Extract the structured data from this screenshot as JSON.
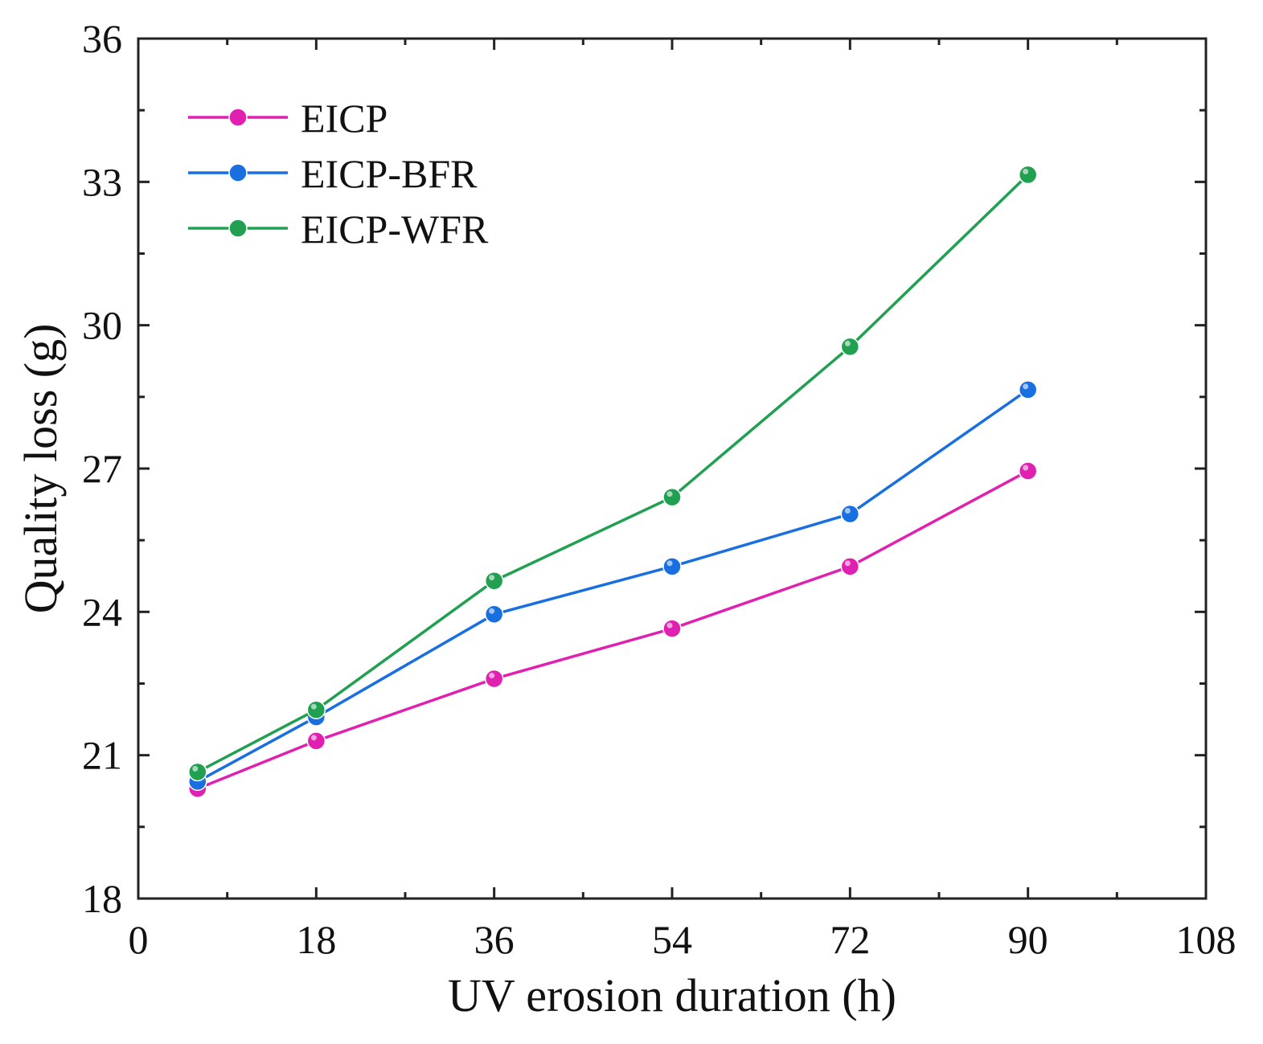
{
  "chart_data": {
    "type": "line",
    "title": "",
    "xlabel": "UV erosion duration (h)",
    "ylabel": "Quality loss (g)",
    "xlim": [
      0,
      108
    ],
    "ylim": [
      18,
      36
    ],
    "xticks": [
      0,
      18,
      36,
      54,
      72,
      90,
      108
    ],
    "yticks": [
      18,
      21,
      24,
      27,
      30,
      33,
      36
    ],
    "grid": false,
    "legend_position": "top-left",
    "x": [
      6,
      18,
      36,
      54,
      72,
      90
    ],
    "series": [
      {
        "name": "EICP",
        "color": "#e020b0",
        "values": [
          20.3,
          21.3,
          22.6,
          23.65,
          24.95,
          26.95
        ]
      },
      {
        "name": "EICP-BFR",
        "color": "#1a6fe0",
        "values": [
          20.45,
          21.8,
          23.95,
          24.95,
          26.05,
          28.65
        ]
      },
      {
        "name": "EICP-WFR",
        "color": "#20a050",
        "values": [
          20.65,
          21.95,
          24.65,
          26.4,
          29.55,
          33.15
        ]
      }
    ]
  }
}
